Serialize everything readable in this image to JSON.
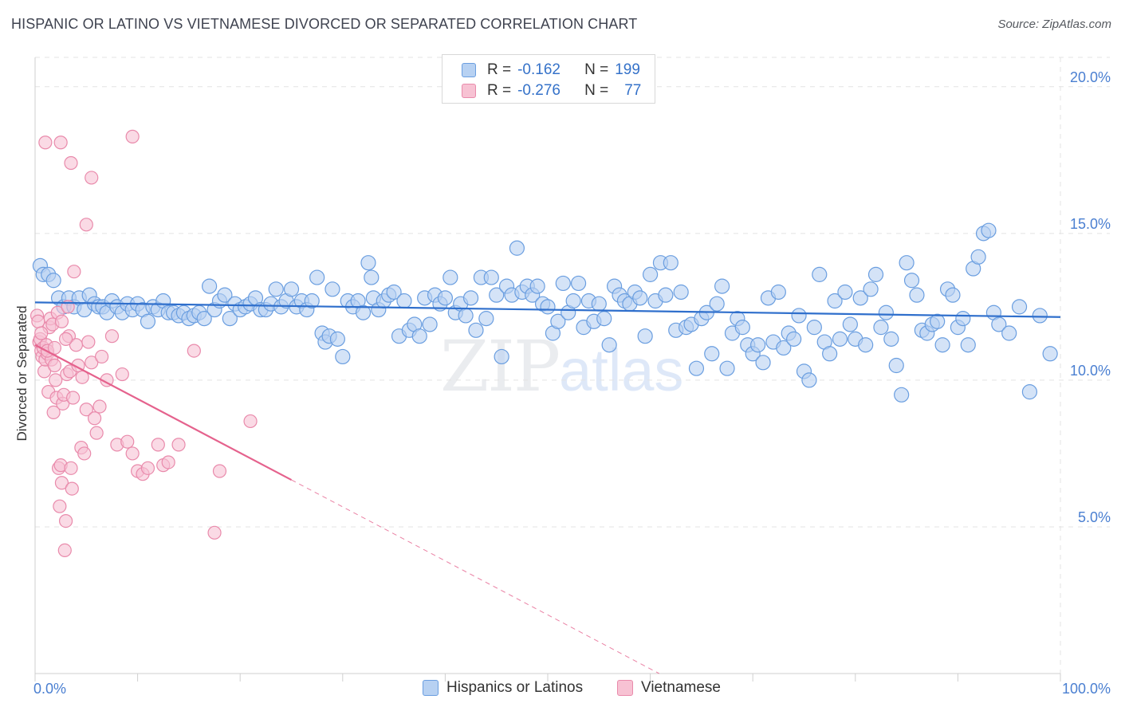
{
  "title": "HISPANIC OR LATINO VS VIETNAMESE DIVORCED OR SEPARATED CORRELATION CHART",
  "source": "Source: ZipAtlas.com",
  "watermark": {
    "zip": "ZIP",
    "atlas": "atlas"
  },
  "legend": {
    "rows": [
      {
        "r_label": "R =",
        "r_value": "-0.162",
        "n_label": "N =",
        "n_value": "199"
      },
      {
        "r_label": "R =",
        "r_value": "-0.276",
        "n_label": "N =",
        "n_value": "77"
      }
    ]
  },
  "bottom_legend": [
    "Hispanics or Latinos",
    "Vietnamese"
  ],
  "colors": {
    "blue_fill": "#b7d1f2",
    "blue_stroke": "#6a9ee0",
    "blue_line": "#2f6fcc",
    "pink_fill": "#f7c2d3",
    "pink_stroke": "#e98aab",
    "pink_line": "#e5628d",
    "grid": "#e3e3e3",
    "tick_text": "#4a7fd1"
  },
  "chart_data": {
    "type": "scatter",
    "title": "HISPANIC OR LATINO VS VIETNAMESE DIVORCED OR SEPARATED CORRELATION CHART",
    "xlabel": "",
    "ylabel": "Divorced or Separated",
    "xlim": [
      0,
      100
    ],
    "ylim": [
      0,
      21
    ],
    "x_tick_labels": [
      "0.0%",
      "100.0%"
    ],
    "y_ticks": [
      5,
      10,
      15,
      20
    ],
    "y_tick_labels": [
      "5.0%",
      "10.0%",
      "15.0%",
      "20.0%"
    ],
    "grid": true,
    "legend_position": "top-center",
    "series": [
      {
        "name": "Hispanics or Latinos",
        "trend": {
          "x": [
            0,
            100
          ],
          "y": [
            12.65,
            12.15
          ]
        },
        "points": [
          [
            0.5,
            13.9
          ],
          [
            0.8,
            13.6
          ],
          [
            1.3,
            13.6
          ],
          [
            1.8,
            13.4
          ],
          [
            2.3,
            12.8
          ],
          [
            2.8,
            12.5
          ],
          [
            3.3,
            12.8
          ],
          [
            3.8,
            12.5
          ],
          [
            4.3,
            12.8
          ],
          [
            4.8,
            12.4
          ],
          [
            5.3,
            12.9
          ],
          [
            5.8,
            12.6
          ],
          [
            6.2,
            12.5
          ],
          [
            6.6,
            12.5
          ],
          [
            7.0,
            12.3
          ],
          [
            7.5,
            12.7
          ],
          [
            8.0,
            12.5
          ],
          [
            8.5,
            12.3
          ],
          [
            9.0,
            12.6
          ],
          [
            9.5,
            12.4
          ],
          [
            10.0,
            12.6
          ],
          [
            10.5,
            12.4
          ],
          [
            11.0,
            12.0
          ],
          [
            11.5,
            12.5
          ],
          [
            12.0,
            12.4
          ],
          [
            12.5,
            12.7
          ],
          [
            13.0,
            12.3
          ],
          [
            13.5,
            12.3
          ],
          [
            14.0,
            12.2
          ],
          [
            14.5,
            12.3
          ],
          [
            15.0,
            12.1
          ],
          [
            15.5,
            12.2
          ],
          [
            16.0,
            12.3
          ],
          [
            16.5,
            12.1
          ],
          [
            17.0,
            13.2
          ],
          [
            17.5,
            12.4
          ],
          [
            18.0,
            12.7
          ],
          [
            18.5,
            12.9
          ],
          [
            19.0,
            12.1
          ],
          [
            19.5,
            12.6
          ],
          [
            20.0,
            12.4
          ],
          [
            20.5,
            12.5
          ],
          [
            21.0,
            12.6
          ],
          [
            21.5,
            12.8
          ],
          [
            22.0,
            12.4
          ],
          [
            22.5,
            12.4
          ],
          [
            23.0,
            12.6
          ],
          [
            23.5,
            13.1
          ],
          [
            24.0,
            12.5
          ],
          [
            24.5,
            12.7
          ],
          [
            25.0,
            13.1
          ],
          [
            25.5,
            12.5
          ],
          [
            26.0,
            12.7
          ],
          [
            26.5,
            12.4
          ],
          [
            27.0,
            12.7
          ],
          [
            27.5,
            13.5
          ],
          [
            28.0,
            11.6
          ],
          [
            28.3,
            11.3
          ],
          [
            28.7,
            11.5
          ],
          [
            29.0,
            13.1
          ],
          [
            29.5,
            11.4
          ],
          [
            30.0,
            10.8
          ],
          [
            30.5,
            12.7
          ],
          [
            31.0,
            12.5
          ],
          [
            31.5,
            12.7
          ],
          [
            32.0,
            12.3
          ],
          [
            32.5,
            14.0
          ],
          [
            32.8,
            13.5
          ],
          [
            33.0,
            12.8
          ],
          [
            33.5,
            12.4
          ],
          [
            34.0,
            12.7
          ],
          [
            34.5,
            12.9
          ],
          [
            35.0,
            13.0
          ],
          [
            35.5,
            11.5
          ],
          [
            36.0,
            12.7
          ],
          [
            36.5,
            11.7
          ],
          [
            37.0,
            11.9
          ],
          [
            37.5,
            11.5
          ],
          [
            38.0,
            12.8
          ],
          [
            38.5,
            11.9
          ],
          [
            39.0,
            12.9
          ],
          [
            39.5,
            12.6
          ],
          [
            40.0,
            12.8
          ],
          [
            40.5,
            13.5
          ],
          [
            41.0,
            12.3
          ],
          [
            41.5,
            12.6
          ],
          [
            42.0,
            12.2
          ],
          [
            42.5,
            12.8
          ],
          [
            43.0,
            11.7
          ],
          [
            43.5,
            13.5
          ],
          [
            44.0,
            12.1
          ],
          [
            44.5,
            13.5
          ],
          [
            45.0,
            12.9
          ],
          [
            45.5,
            10.8
          ],
          [
            46.0,
            13.2
          ],
          [
            46.5,
            12.9
          ],
          [
            47.0,
            14.5
          ],
          [
            47.5,
            13.0
          ],
          [
            48.0,
            13.2
          ],
          [
            48.5,
            12.9
          ],
          [
            49.0,
            13.2
          ],
          [
            49.5,
            12.6
          ],
          [
            50.0,
            12.5
          ],
          [
            50.5,
            11.6
          ],
          [
            51.0,
            12.0
          ],
          [
            51.5,
            13.3
          ],
          [
            52.0,
            12.3
          ],
          [
            52.5,
            12.7
          ],
          [
            53.0,
            13.3
          ],
          [
            53.5,
            11.8
          ],
          [
            54.0,
            12.7
          ],
          [
            54.5,
            12.0
          ],
          [
            55.0,
            12.6
          ],
          [
            55.5,
            12.1
          ],
          [
            56.0,
            11.2
          ],
          [
            56.5,
            13.2
          ],
          [
            57.0,
            12.9
          ],
          [
            57.5,
            12.7
          ],
          [
            58.0,
            12.6
          ],
          [
            58.5,
            13.0
          ],
          [
            59.0,
            12.8
          ],
          [
            59.5,
            11.5
          ],
          [
            60.0,
            13.6
          ],
          [
            60.5,
            12.7
          ],
          [
            61.0,
            14.0
          ],
          [
            61.5,
            12.9
          ],
          [
            62.0,
            14.0
          ],
          [
            62.5,
            11.7
          ],
          [
            63.0,
            13.0
          ],
          [
            63.5,
            11.8
          ],
          [
            64.0,
            11.9
          ],
          [
            64.5,
            10.4
          ],
          [
            65.0,
            12.1
          ],
          [
            65.5,
            12.3
          ],
          [
            66.0,
            10.9
          ],
          [
            66.5,
            12.6
          ],
          [
            67.0,
            13.2
          ],
          [
            67.5,
            10.4
          ],
          [
            68.0,
            11.6
          ],
          [
            68.5,
            12.1
          ],
          [
            69.0,
            11.8
          ],
          [
            69.5,
            11.2
          ],
          [
            70.0,
            10.9
          ],
          [
            70.5,
            11.2
          ],
          [
            71.0,
            10.6
          ],
          [
            71.5,
            12.8
          ],
          [
            72.0,
            11.3
          ],
          [
            72.5,
            13.0
          ],
          [
            73.0,
            11.1
          ],
          [
            73.5,
            11.6
          ],
          [
            74.0,
            11.4
          ],
          [
            74.5,
            12.2
          ],
          [
            75.0,
            10.3
          ],
          [
            75.5,
            10.0
          ],
          [
            76.0,
            11.8
          ],
          [
            76.5,
            13.6
          ],
          [
            77.0,
            11.3
          ],
          [
            77.5,
            10.9
          ],
          [
            78.0,
            12.7
          ],
          [
            78.5,
            11.4
          ],
          [
            79.0,
            13.0
          ],
          [
            79.5,
            11.9
          ],
          [
            80.0,
            11.4
          ],
          [
            80.5,
            12.8
          ],
          [
            81.0,
            11.2
          ],
          [
            81.5,
            13.1
          ],
          [
            82.0,
            13.6
          ],
          [
            82.5,
            11.8
          ],
          [
            83.0,
            12.3
          ],
          [
            83.5,
            11.4
          ],
          [
            84.0,
            10.5
          ],
          [
            84.5,
            9.5
          ],
          [
            85.0,
            14.0
          ],
          [
            85.5,
            13.4
          ],
          [
            86.0,
            12.9
          ],
          [
            86.5,
            11.7
          ],
          [
            87.0,
            11.6
          ],
          [
            87.5,
            11.9
          ],
          [
            88.0,
            12.0
          ],
          [
            88.5,
            11.2
          ],
          [
            89.0,
            13.1
          ],
          [
            89.5,
            12.9
          ],
          [
            90.0,
            11.8
          ],
          [
            90.5,
            12.1
          ],
          [
            91.0,
            11.2
          ],
          [
            91.5,
            13.8
          ],
          [
            92.0,
            14.2
          ],
          [
            92.5,
            15.0
          ],
          [
            93.0,
            15.1
          ],
          [
            93.5,
            12.3
          ],
          [
            94.0,
            11.9
          ],
          [
            95.0,
            11.6
          ],
          [
            96.0,
            12.5
          ],
          [
            97.0,
            9.6
          ],
          [
            98.0,
            12.2
          ],
          [
            99.0,
            10.9
          ]
        ]
      },
      {
        "name": "Vietnamese",
        "trend": {
          "x": [
            0,
            25
          ],
          "y": [
            11.2,
            6.6
          ],
          "dashed_to": [
            100,
            -7.3
          ]
        },
        "points": [
          [
            0.2,
            12.2
          ],
          [
            0.4,
            11.3
          ],
          [
            0.5,
            11.4
          ],
          [
            0.6,
            11.0
          ],
          [
            0.7,
            10.8
          ],
          [
            0.8,
            11.1
          ],
          [
            0.9,
            10.3
          ],
          [
            1.0,
            10.7
          ],
          [
            1.1,
            11.2
          ],
          [
            1.2,
            10.9
          ],
          [
            1.3,
            9.6
          ],
          [
            1.4,
            11.8
          ],
          [
            1.5,
            12.1
          ],
          [
            1.6,
            10.7
          ],
          [
            1.7,
            11.9
          ],
          [
            1.8,
            8.9
          ],
          [
            1.9,
            10.5
          ],
          [
            2.0,
            10.0
          ],
          [
            2.1,
            9.4
          ],
          [
            2.2,
            12.3
          ],
          [
            2.3,
            7.0
          ],
          [
            2.4,
            5.7
          ],
          [
            2.5,
            7.1
          ],
          [
            2.6,
            6.5
          ],
          [
            2.7,
            9.2
          ],
          [
            2.8,
            9.5
          ],
          [
            2.9,
            4.2
          ],
          [
            3.0,
            5.2
          ],
          [
            3.1,
            10.2
          ],
          [
            3.2,
            12.5
          ],
          [
            3.3,
            11.5
          ],
          [
            3.4,
            10.3
          ],
          [
            3.5,
            7.0
          ],
          [
            3.6,
            6.3
          ],
          [
            3.7,
            9.4
          ],
          [
            3.8,
            13.7
          ],
          [
            4.0,
            11.2
          ],
          [
            4.2,
            10.5
          ],
          [
            4.5,
            7.7
          ],
          [
            4.8,
            7.5
          ],
          [
            5.0,
            9.0
          ],
          [
            5.2,
            11.3
          ],
          [
            5.5,
            10.6
          ],
          [
            5.8,
            8.7
          ],
          [
            6.0,
            8.2
          ],
          [
            6.3,
            9.1
          ],
          [
            6.5,
            10.8
          ],
          [
            7.0,
            10.0
          ],
          [
            7.5,
            11.5
          ],
          [
            8.0,
            7.8
          ],
          [
            8.5,
            10.2
          ],
          [
            9.0,
            7.9
          ],
          [
            9.5,
            7.5
          ],
          [
            10.0,
            6.9
          ],
          [
            10.5,
            6.8
          ],
          [
            11.0,
            7.0
          ],
          [
            12.0,
            7.8
          ],
          [
            12.5,
            7.1
          ],
          [
            13.0,
            7.2
          ],
          [
            14.0,
            7.8
          ],
          [
            15.5,
            11.0
          ],
          [
            17.5,
            4.8
          ],
          [
            18.0,
            6.9
          ],
          [
            21.0,
            8.6
          ],
          [
            1.0,
            18.1
          ],
          [
            2.5,
            18.1
          ],
          [
            3.5,
            17.4
          ],
          [
            5.0,
            15.3
          ],
          [
            5.5,
            16.9
          ],
          [
            9.5,
            18.3
          ],
          [
            0.3,
            12.0
          ],
          [
            0.6,
            11.6
          ],
          [
            1.2,
            11.0
          ],
          [
            1.9,
            11.1
          ],
          [
            2.6,
            12.0
          ],
          [
            4.6,
            10.1
          ],
          [
            3.0,
            11.4
          ]
        ]
      }
    ]
  }
}
